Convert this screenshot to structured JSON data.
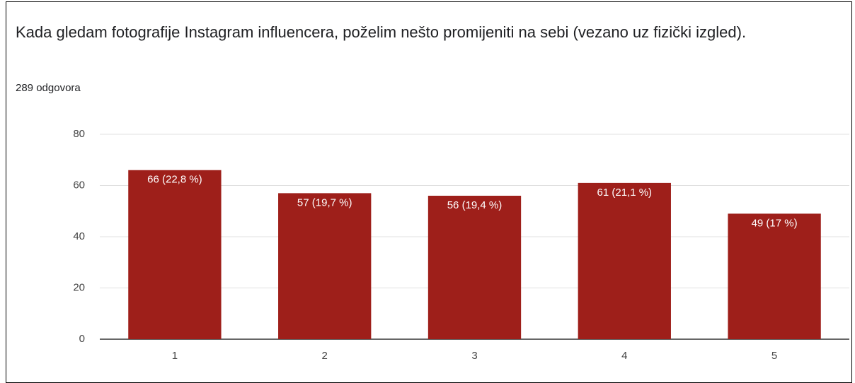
{
  "chart_data": {
    "type": "bar",
    "title": "Kada gledam fotografije Instagram influencera, poželim nešto promijeniti na sebi (vezano uz fizički izgled).",
    "subtitle": "289 odgovora",
    "categories": [
      "1",
      "2",
      "3",
      "4",
      "5"
    ],
    "values": [
      66,
      57,
      56,
      61,
      49
    ],
    "value_labels": [
      "66 (22,8 %)",
      "57 (19,7 %)",
      "56 (19,4 %)",
      "61 (21,1 %)",
      "49 (17 %)"
    ],
    "color": "#9e1f1a",
    "ylim": [
      0,
      80
    ],
    "yticks": [
      0,
      20,
      40,
      60,
      80
    ],
    "grid": true
  }
}
